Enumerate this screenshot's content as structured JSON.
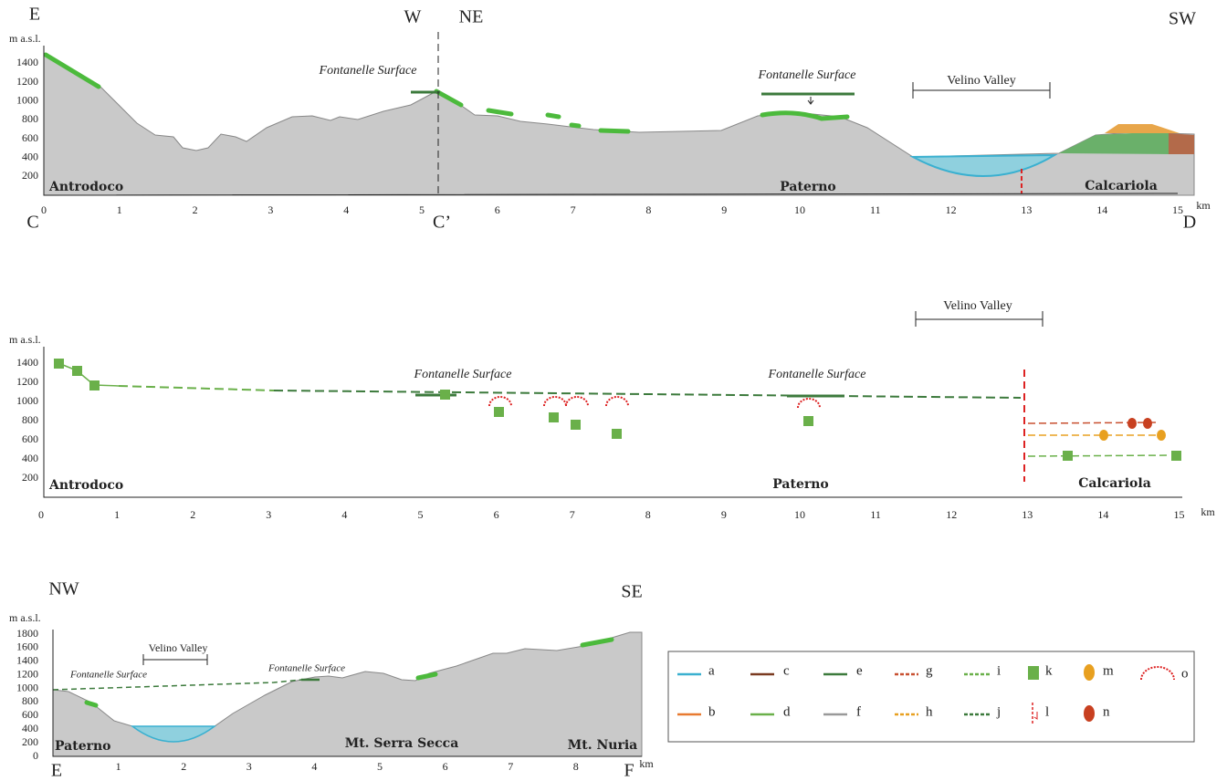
{
  "profile_1": {
    "end_labels": [
      "E",
      "W",
      "NE",
      "SW"
    ],
    "trace_labels": [
      "C",
      "C’",
      "D"
    ],
    "y_unit": "m a.s.l.",
    "y_ticks": [
      200,
      400,
      600,
      800,
      1000,
      1200,
      1400
    ],
    "x_unit": "km",
    "x_ticks": [
      0,
      1,
      2,
      3,
      4,
      5,
      6,
      7,
      8,
      9,
      10,
      11,
      12,
      13,
      14,
      15
    ],
    "surface_labels": [
      "Fontanelle Surface",
      "Fontanelle Surface"
    ],
    "valley_label": "Velino Valley",
    "places": [
      "Antrodoco",
      "Paterno",
      "Calcariola"
    ]
  },
  "profile_2": {
    "y_unit": "m a.s.l.",
    "y_ticks": [
      200,
      400,
      600,
      800,
      1000,
      1200,
      1400
    ],
    "x_unit": "km",
    "x_ticks": [
      0,
      1,
      2,
      3,
      4,
      5,
      6,
      7,
      8,
      9,
      10,
      11,
      12,
      13,
      14,
      15
    ],
    "surface_labels": [
      "Fontanelle Surface",
      "Fontanelle Surface"
    ],
    "valley_label": "Velino Valley",
    "places": [
      "Antrodoco",
      "Paterno",
      "Calcariola"
    ]
  },
  "profile_3": {
    "end_labels": [
      "NW",
      "SE"
    ],
    "trace_labels": [
      "E",
      "F"
    ],
    "y_unit": "m a.s.l.",
    "y_ticks": [
      0,
      200,
      400,
      600,
      800,
      1000,
      1200,
      1400,
      1600,
      1800
    ],
    "x_unit": "km",
    "x_ticks": [
      1,
      2,
      3,
      4,
      5,
      6,
      7,
      8
    ],
    "surface_labels": [
      "Fontanelle Surface",
      "Fontanelle Surface"
    ],
    "valley_label": "Velino Valley",
    "places": [
      "Paterno",
      "Mt. Serra Secca",
      "Mt. Nuria"
    ]
  },
  "legend": [
    "a",
    "b",
    "c",
    "d",
    "e",
    "f",
    "g",
    "h",
    "i",
    "j",
    "k",
    "l",
    "m",
    "n",
    "o"
  ]
}
